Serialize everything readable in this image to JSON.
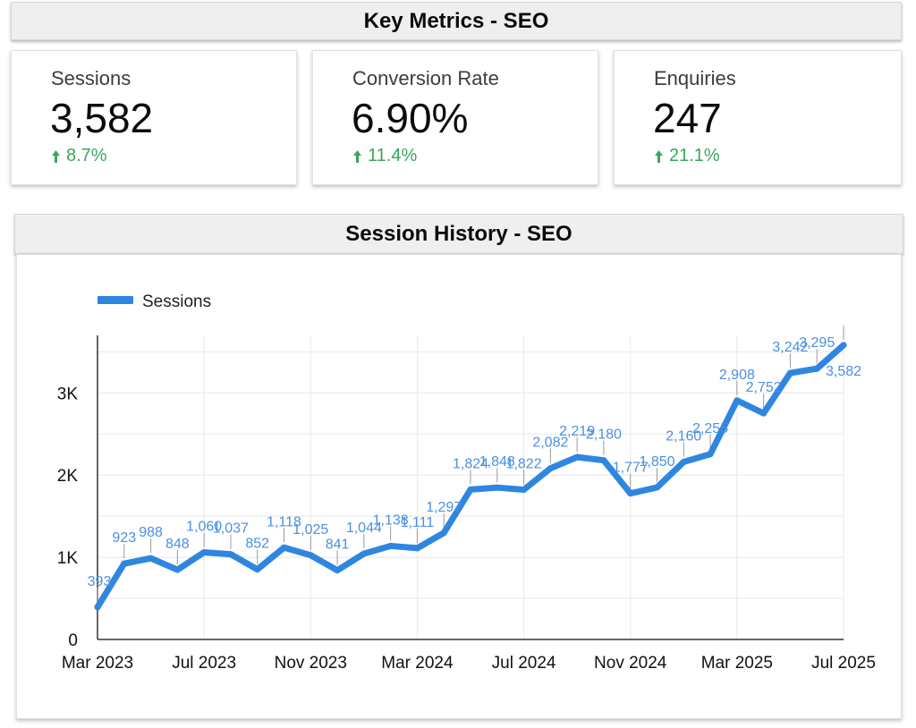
{
  "header": {
    "title": "Key Metrics - SEO"
  },
  "scorecards": [
    {
      "label": "Sessions",
      "value": "3,582",
      "delta": "8.7%"
    },
    {
      "label": "Conversion Rate",
      "value": "6.90%",
      "delta": "11.4%"
    },
    {
      "label": "Enquiries",
      "value": "247",
      "delta": "21.1%"
    }
  ],
  "colors": {
    "series": "#2f86e0",
    "positive": "#3ba55c",
    "label": "#4a90e2",
    "grid": "#e8e8e8"
  },
  "chart_data": {
    "type": "line",
    "title": "Session History - SEO",
    "legend": {
      "position": "top-left",
      "entries": [
        "Sessions"
      ]
    },
    "grid": true,
    "x": [
      "2023-03",
      "2023-04",
      "2023-05",
      "2023-06",
      "2023-07",
      "2023-08",
      "2023-09",
      "2023-10",
      "2023-11",
      "2023-12",
      "2024-01",
      "2024-02",
      "2024-03",
      "2024-04",
      "2024-05",
      "2024-06",
      "2024-07",
      "2024-08",
      "2024-09",
      "2024-10",
      "2024-11",
      "2024-12",
      "2025-01",
      "2025-02",
      "2025-03",
      "2025-04",
      "2025-05",
      "2025-06",
      "2025-07"
    ],
    "x_tick_labels": [
      "Mar 2023",
      "Jul 2023",
      "Nov 2023",
      "Mar 2024",
      "Jul 2024",
      "Nov 2024",
      "Mar 2025",
      "Jul 2025"
    ],
    "x_tick_indices": [
      0,
      4,
      8,
      12,
      16,
      20,
      24,
      28
    ],
    "y_ticks": [
      0,
      1000,
      2000,
      3000
    ],
    "y_tick_labels": [
      "0",
      "1K",
      "2K",
      "3K"
    ],
    "ylim": [
      0,
      3700
    ],
    "series": [
      {
        "name": "Sessions",
        "values": [
          393,
          923,
          988,
          848,
          1060,
          1037,
          852,
          1118,
          1025,
          841,
          1044,
          1138,
          1111,
          1297,
          1824,
          1848,
          1822,
          2082,
          2219,
          2180,
          1777,
          1850,
          2160,
          2255,
          2908,
          2752,
          3242,
          3295,
          3582
        ],
        "labels": [
          "393",
          "923",
          "988",
          "848",
          "1,060",
          "1,037",
          "852",
          "1,118",
          "1,025",
          "841",
          "1,044",
          "1,138",
          "1,111",
          "1,297",
          "1,824",
          "1,848",
          "1,822",
          "2,082",
          "2,219",
          "2,180",
          "1,777",
          "1,850",
          "2,160",
          "2,255",
          "2,908",
          "2,752",
          "3,242",
          "3,295",
          "3,582"
        ]
      }
    ]
  }
}
